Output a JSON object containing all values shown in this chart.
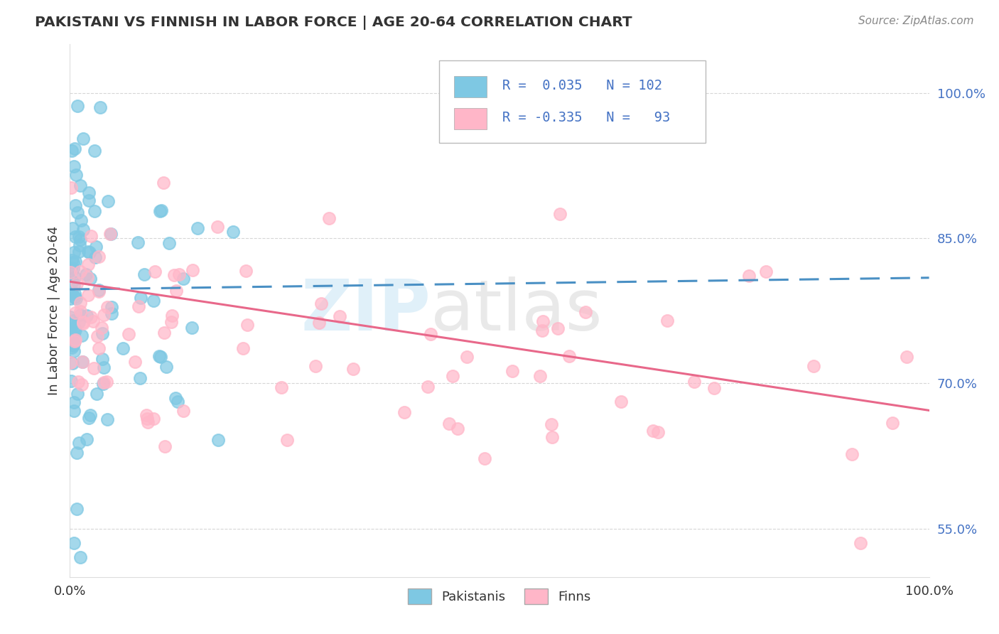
{
  "title": "PAKISTANI VS FINNISH IN LABOR FORCE | AGE 20-64 CORRELATION CHART",
  "source": "Source: ZipAtlas.com",
  "ylabel": "In Labor Force | Age 20-64",
  "yticks": [
    0.55,
    0.7,
    0.85,
    1.0
  ],
  "ytick_labels": [
    "55.0%",
    "70.0%",
    "85.0%",
    "100.0%"
  ],
  "legend_pakistani_label": "Pakistanis",
  "legend_finn_label": "Finns",
  "R_pakistani": 0.035,
  "N_pakistani": 102,
  "R_finn": -0.335,
  "N_finn": 93,
  "blue_color": "#7ec8e3",
  "pink_color": "#ffb6c8",
  "blue_line_color": "#4a90c4",
  "pink_line_color": "#e8688a",
  "background_color": "#ffffff",
  "grid_color": "#cccccc",
  "watermark": "ZIPAtlas",
  "tick_color": "#4472c4",
  "title_color": "#333333",
  "source_color": "#888888"
}
